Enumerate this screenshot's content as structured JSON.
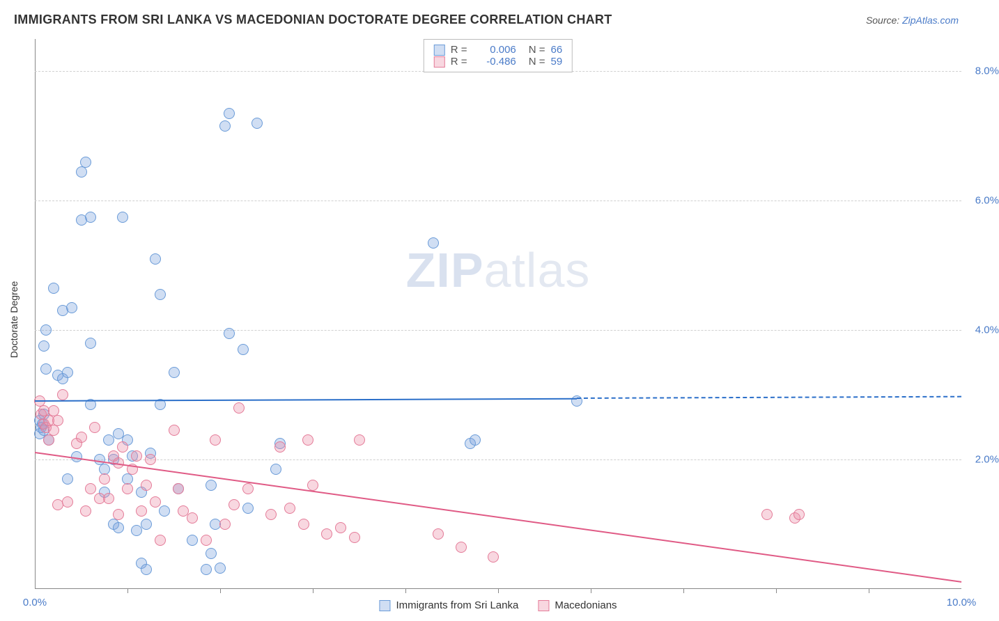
{
  "header": {
    "title": "IMMIGRANTS FROM SRI LANKA VS MACEDONIAN DOCTORATE DEGREE CORRELATION CHART",
    "source_prefix": "Source: ",
    "source_link": "ZipAtlas.com"
  },
  "chart": {
    "type": "scatter",
    "ylabel": "Doctorate Degree",
    "xlim": [
      0,
      10
    ],
    "ylim": [
      0,
      8.5
    ],
    "xticks": [
      0,
      10
    ],
    "xtick_labels": [
      "0.0%",
      "10.0%"
    ],
    "yticks": [
      2,
      4,
      6,
      8
    ],
    "ytick_labels": [
      "2.0%",
      "4.0%",
      "6.0%",
      "8.0%"
    ],
    "xtick_minor": [
      1,
      2,
      3,
      4,
      5,
      6,
      7,
      8,
      9
    ],
    "grid_color": "#d0d0d0",
    "axis_color": "#888888",
    "background_color": "#ffffff",
    "series": [
      {
        "name": "Immigrants from Sri Lanka",
        "color_fill": "rgba(120,160,220,0.35)",
        "color_stroke": "#6a9bd8",
        "trend_color": "#2b6fc9",
        "r": "0.006",
        "n": "66",
        "trend": {
          "y_at_x0": 2.92,
          "y_at_xmax": 2.98,
          "solid_until_x": 5.85
        },
        "marker_radius": 8,
        "points": [
          [
            0.05,
            2.6
          ],
          [
            0.05,
            2.4
          ],
          [
            0.07,
            2.5
          ],
          [
            0.1,
            2.7
          ],
          [
            0.08,
            2.55
          ],
          [
            0.1,
            2.45
          ],
          [
            0.1,
            3.75
          ],
          [
            0.12,
            4.0
          ],
          [
            0.12,
            3.4
          ],
          [
            0.15,
            2.3
          ],
          [
            0.2,
            4.65
          ],
          [
            0.25,
            3.3
          ],
          [
            0.3,
            3.25
          ],
          [
            0.3,
            4.3
          ],
          [
            0.35,
            1.7
          ],
          [
            0.35,
            3.35
          ],
          [
            0.4,
            4.35
          ],
          [
            0.45,
            2.04
          ],
          [
            0.5,
            5.7
          ],
          [
            0.5,
            6.45
          ],
          [
            0.55,
            6.6
          ],
          [
            0.6,
            2.85
          ],
          [
            0.6,
            5.75
          ],
          [
            0.6,
            3.8
          ],
          [
            0.7,
            2.0
          ],
          [
            0.75,
            1.85
          ],
          [
            0.75,
            1.5
          ],
          [
            0.8,
            2.3
          ],
          [
            0.85,
            2.0
          ],
          [
            0.85,
            1.0
          ],
          [
            0.9,
            0.95
          ],
          [
            0.9,
            2.4
          ],
          [
            0.95,
            5.75
          ],
          [
            1.0,
            2.3
          ],
          [
            1.0,
            1.7
          ],
          [
            1.05,
            2.05
          ],
          [
            1.1,
            0.9
          ],
          [
            1.15,
            1.5
          ],
          [
            1.15,
            0.4
          ],
          [
            1.2,
            0.3
          ],
          [
            1.2,
            1.0
          ],
          [
            1.25,
            2.1
          ],
          [
            1.3,
            5.1
          ],
          [
            1.35,
            4.55
          ],
          [
            1.35,
            2.85
          ],
          [
            1.4,
            1.2
          ],
          [
            1.5,
            3.35
          ],
          [
            1.55,
            1.55
          ],
          [
            1.7,
            0.75
          ],
          [
            1.85,
            0.3
          ],
          [
            1.9,
            1.6
          ],
          [
            1.9,
            0.55
          ],
          [
            1.95,
            1.0
          ],
          [
            2.0,
            0.32
          ],
          [
            2.05,
            7.15
          ],
          [
            2.1,
            7.35
          ],
          [
            2.1,
            3.95
          ],
          [
            2.25,
            3.7
          ],
          [
            2.3,
            1.25
          ],
          [
            2.4,
            7.2
          ],
          [
            2.6,
            1.85
          ],
          [
            2.65,
            2.25
          ],
          [
            4.3,
            5.35
          ],
          [
            4.7,
            2.25
          ],
          [
            4.75,
            2.3
          ],
          [
            5.85,
            2.9
          ]
        ]
      },
      {
        "name": "Macedonians",
        "color_fill": "rgba(235,140,165,0.35)",
        "color_stroke": "#e47b98",
        "trend_color": "#e05a85",
        "r": "-0.486",
        "n": "59",
        "trend": {
          "y_at_x0": 2.12,
          "y_at_xmax": 0.12,
          "solid_until_x": 10
        },
        "marker_radius": 8,
        "points": [
          [
            0.05,
            2.9
          ],
          [
            0.07,
            2.7
          ],
          [
            0.1,
            2.55
          ],
          [
            0.1,
            2.75
          ],
          [
            0.12,
            2.5
          ],
          [
            0.15,
            2.6
          ],
          [
            0.15,
            2.3
          ],
          [
            0.2,
            2.45
          ],
          [
            0.2,
            2.75
          ],
          [
            0.25,
            2.6
          ],
          [
            0.25,
            1.3
          ],
          [
            0.3,
            3.0
          ],
          [
            0.35,
            1.35
          ],
          [
            0.45,
            2.25
          ],
          [
            0.5,
            2.35
          ],
          [
            0.55,
            1.2
          ],
          [
            0.6,
            1.55
          ],
          [
            0.65,
            2.5
          ],
          [
            0.7,
            1.4
          ],
          [
            0.75,
            1.7
          ],
          [
            0.8,
            1.4
          ],
          [
            0.85,
            2.05
          ],
          [
            0.9,
            1.15
          ],
          [
            0.9,
            1.95
          ],
          [
            0.95,
            2.2
          ],
          [
            1.0,
            1.55
          ],
          [
            1.05,
            1.85
          ],
          [
            1.1,
            2.05
          ],
          [
            1.15,
            1.2
          ],
          [
            1.2,
            1.6
          ],
          [
            1.25,
            2.0
          ],
          [
            1.3,
            1.35
          ],
          [
            1.35,
            0.75
          ],
          [
            1.5,
            2.45
          ],
          [
            1.55,
            1.55
          ],
          [
            1.6,
            1.2
          ],
          [
            1.7,
            1.1
          ],
          [
            1.85,
            0.75
          ],
          [
            1.95,
            2.3
          ],
          [
            2.05,
            1.0
          ],
          [
            2.15,
            1.3
          ],
          [
            2.2,
            2.8
          ],
          [
            2.3,
            1.55
          ],
          [
            2.55,
            1.15
          ],
          [
            2.65,
            2.2
          ],
          [
            2.75,
            1.25
          ],
          [
            2.9,
            1.0
          ],
          [
            2.95,
            2.3
          ],
          [
            3.0,
            1.6
          ],
          [
            3.15,
            0.85
          ],
          [
            3.3,
            0.95
          ],
          [
            3.45,
            0.8
          ],
          [
            3.5,
            2.3
          ],
          [
            4.35,
            0.85
          ],
          [
            4.6,
            0.65
          ],
          [
            4.95,
            0.5
          ],
          [
            7.9,
            1.15
          ],
          [
            8.2,
            1.1
          ],
          [
            8.25,
            1.15
          ]
        ]
      }
    ]
  },
  "watermark": {
    "bold": "ZIP",
    "rest": "atlas"
  }
}
